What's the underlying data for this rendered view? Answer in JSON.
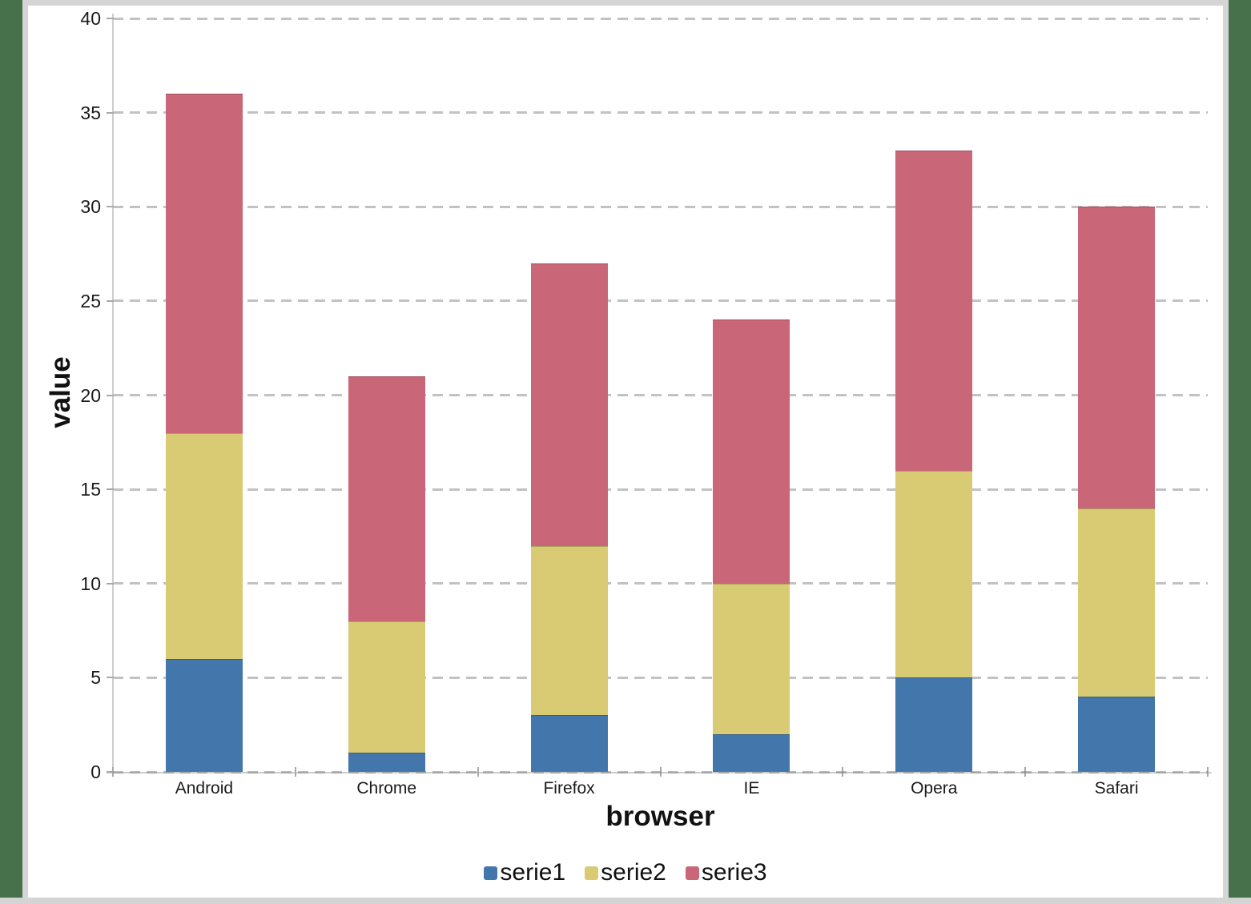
{
  "page": {
    "background_color": "#47714a",
    "panel_border_color": "#d5d5d5",
    "panel_background": "#ffffff",
    "grid_color": "#c2c2c2",
    "axis_color": "#cdcdcd",
    "tick_color": "#a8a8a8",
    "text_color": "#1a1a1a"
  },
  "chart_data": {
    "type": "bar",
    "stacked": true,
    "title": "",
    "categories": [
      "Android",
      "Chrome",
      "Firefox",
      "IE",
      "Opera",
      "Safari"
    ],
    "series": [
      {
        "name": "serie1",
        "color": "#4377ac",
        "values": [
          6,
          1,
          3,
          2,
          5,
          4
        ]
      },
      {
        "name": "serie2",
        "color": "#d8cb74",
        "values": [
          12,
          7,
          9,
          8,
          11,
          10
        ]
      },
      {
        "name": "serie3",
        "color": "#c96677",
        "values": [
          18,
          13,
          15,
          14,
          17,
          16
        ]
      }
    ],
    "totals": [
      36,
      21,
      27,
      24,
      33,
      30
    ],
    "xlabel": "browser",
    "ylabel": "value",
    "ylim": [
      0,
      40
    ],
    "yticks": [
      0,
      5,
      10,
      15,
      20,
      25,
      30,
      35,
      40
    ],
    "grid": "horizontal dashed",
    "legend_position": "bottom"
  }
}
